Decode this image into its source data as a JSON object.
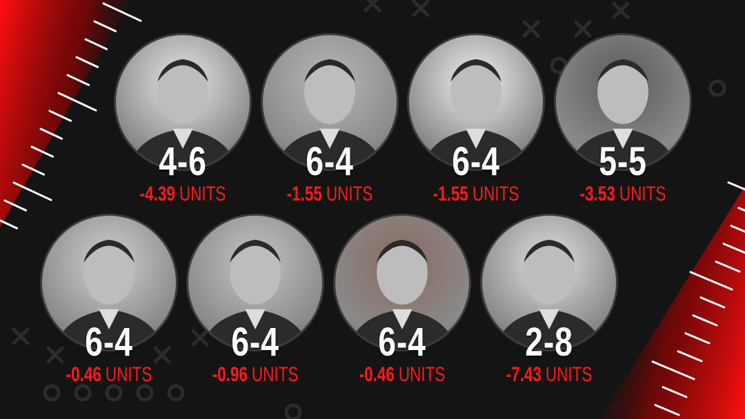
{
  "colors": {
    "background": "#141414",
    "accent_red": "#ff1a1a",
    "record_text": "#ffffff"
  },
  "cards": [
    {
      "record": "4-6",
      "units_value": "-4.39",
      "units_label": "UNITS"
    },
    {
      "record": "6-4",
      "units_value": "-1.55",
      "units_label": "UNITS"
    },
    {
      "record": "6-4",
      "units_value": "-1.55",
      "units_label": "UNITS"
    },
    {
      "record": "5-5",
      "units_value": "-3.53",
      "units_label": "UNITS"
    },
    {
      "record": "6-4",
      "units_value": "-0.46",
      "units_label": "UNITS"
    },
    {
      "record": "6-4",
      "units_value": "-0.96",
      "units_label": "UNITS"
    },
    {
      "record": "6-4",
      "units_value": "-0.46",
      "units_label": "UNITS"
    },
    {
      "record": "2-8",
      "units_value": "-7.43",
      "units_label": "UNITS"
    }
  ]
}
